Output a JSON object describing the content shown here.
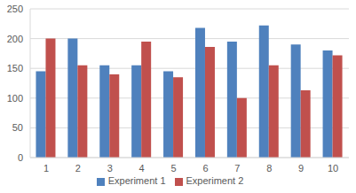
{
  "chart_data": {
    "type": "bar",
    "categories": [
      "1",
      "2",
      "3",
      "4",
      "5",
      "6",
      "7",
      "8",
      "9",
      "10"
    ],
    "series": [
      {
        "name": "Experiment 1",
        "color": "#4f81bd",
        "values": [
          145,
          200,
          155,
          155,
          145,
          218,
          195,
          222,
          190,
          180
        ]
      },
      {
        "name": "Experiment 2",
        "color": "#c0504d",
        "values": [
          200,
          155,
          140,
          195,
          135,
          186,
          100,
          155,
          113,
          172
        ]
      }
    ],
    "ylim": [
      0,
      250
    ],
    "yticks": [
      0,
      50,
      100,
      150,
      200,
      250
    ],
    "grid": true,
    "legend": "bottom"
  }
}
